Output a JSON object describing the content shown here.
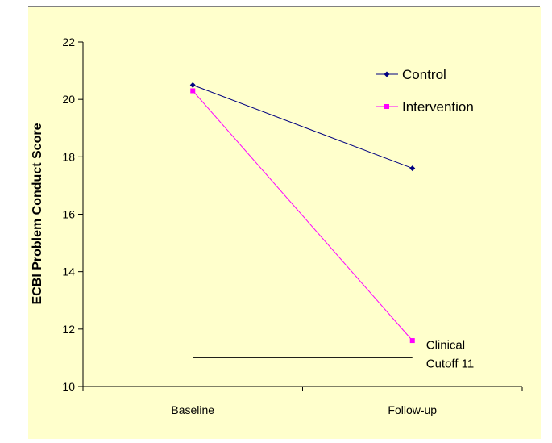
{
  "chart_data": {
    "type": "line",
    "title": "",
    "xlabel": "",
    "ylabel": "ECBI Problem Conduct Score",
    "categories": [
      "Baseline",
      "Follow-up"
    ],
    "ylim": [
      10,
      22
    ],
    "yticks": [
      10,
      12,
      14,
      16,
      18,
      20,
      22
    ],
    "grid": false,
    "legend_position": "top-right",
    "series": [
      {
        "name": "Control",
        "values": [
          20.5,
          17.6
        ],
        "color": "#000080",
        "marker": "diamond"
      },
      {
        "name": "Intervention",
        "values": [
          20.3,
          11.6
        ],
        "color": "#ff00ff",
        "marker": "square"
      }
    ],
    "reference_line": {
      "value": 11,
      "label_lines": [
        "Clinical",
        "Cutoff 11"
      ],
      "color": "#000000"
    },
    "colors": {
      "plot_background": "#ffffcc",
      "axis": "#000000"
    }
  }
}
